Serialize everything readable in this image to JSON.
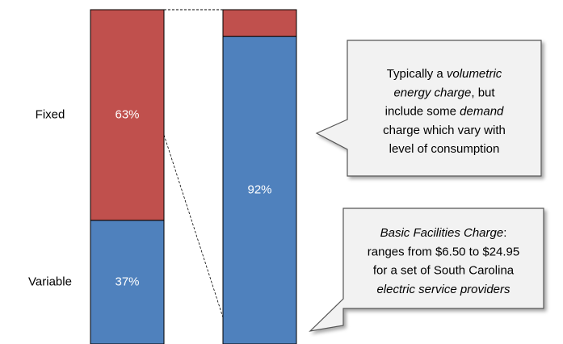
{
  "chart_data": {
    "type": "stacked_bar",
    "categories": [
      null,
      null
    ],
    "ylim": [
      0,
      100
    ],
    "series": [
      {
        "name": "Variable",
        "color": "#4f81bd",
        "values": [
          37,
          92
        ],
        "value_labels": [
          "37%",
          "92%"
        ]
      },
      {
        "name": "Fixed",
        "color": "#c0504d",
        "values": [
          63,
          8
        ],
        "value_labels": [
          "63%",
          null
        ]
      }
    ],
    "annotations": [
      {
        "lines": [
          [
            {
              "text": "Typically a ",
              "italic": false
            },
            {
              "text": "volumetric",
              "italic": true
            }
          ],
          [
            {
              "text": "energy charge",
              "italic": true
            },
            {
              "text": ", but",
              "italic": false
            }
          ],
          [
            {
              "text": "include some ",
              "italic": false
            },
            {
              "text": "demand",
              "italic": true
            }
          ],
          [
            {
              "text": "charge which vary with",
              "italic": false
            }
          ],
          [
            {
              "text": "level of consumption",
              "italic": false
            }
          ]
        ]
      },
      {
        "lines": [
          [
            {
              "text": "Basic Facilities Charge",
              "italic": true
            },
            {
              "text": ":",
              "italic": false
            }
          ],
          [
            {
              "text": "ranges from $6.50 to $24.95",
              "italic": false
            }
          ],
          [
            {
              "text": "for a set of South Carolina",
              "italic": false
            }
          ],
          [
            {
              "text": "electric service providers",
              "italic": true
            }
          ]
        ]
      }
    ]
  }
}
